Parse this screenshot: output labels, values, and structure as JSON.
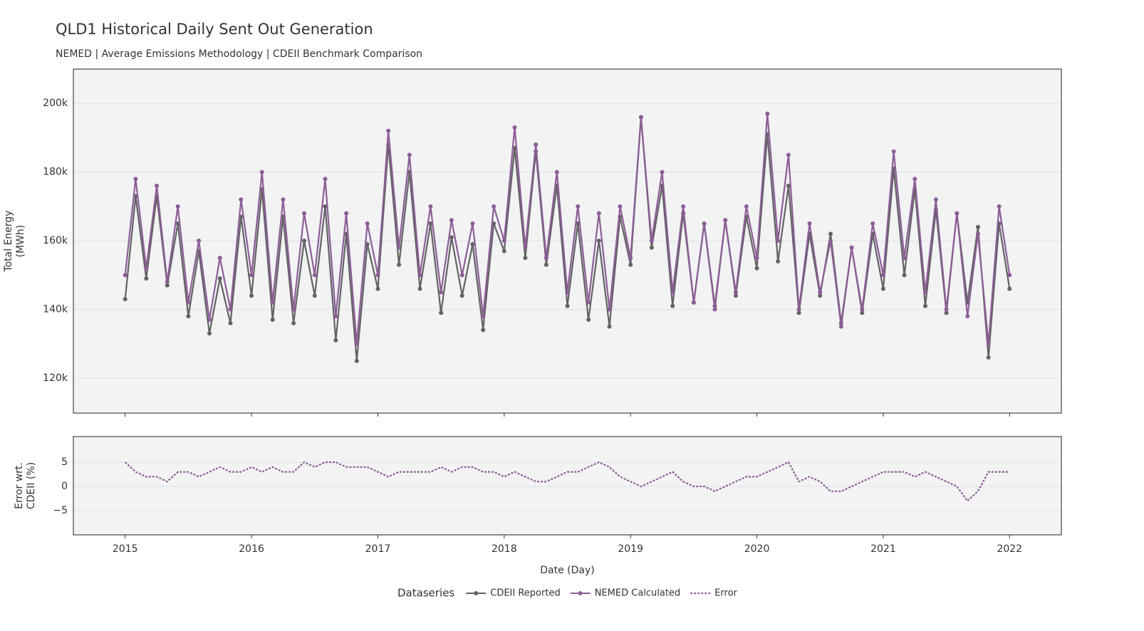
{
  "chart_data": [
    {
      "type": "line",
      "title": "QLD1 Historical Daily Sent Out Generation",
      "subtitle": "NEMED | Average Emissions Methodology | CDEII Benchmark Comparison",
      "ylabel": [
        "Total Energy",
        "(MWh)"
      ],
      "legend_title": "Dataseries",
      "legend": "bottom",
      "grid": true,
      "x": [
        2015,
        2015.083,
        2015.167,
        2015.25,
        2015.333,
        2015.417,
        2015.5,
        2015.583,
        2015.667,
        2015.75,
        2015.833,
        2015.917,
        2016,
        2016.083,
        2016.167,
        2016.25,
        2016.333,
        2016.417,
        2016.5,
        2016.583,
        2016.667,
        2016.75,
        2016.833,
        2016.917,
        2017,
        2017.083,
        2017.167,
        2017.25,
        2017.333,
        2017.417,
        2017.5,
        2017.583,
        2017.667,
        2017.75,
        2017.833,
        2017.917,
        2018,
        2018.083,
        2018.167,
        2018.25,
        2018.333,
        2018.417,
        2018.5,
        2018.583,
        2018.667,
        2018.75,
        2018.833,
        2018.917,
        2019,
        2019.083,
        2019.167,
        2019.25,
        2019.333,
        2019.417,
        2019.5,
        2019.583,
        2019.667,
        2019.75,
        2019.833,
        2019.917,
        2020,
        2020.083,
        2020.167,
        2020.25,
        2020.333,
        2020.417,
        2020.5,
        2020.583,
        2020.667,
        2020.75,
        2020.833,
        2020.917,
        2021,
        2021.083,
        2021.167,
        2021.25,
        2021.333,
        2021.417,
        2021.5,
        2021.583,
        2021.667,
        2021.75,
        2021.833,
        2021.917,
        2022
      ],
      "xlim": [
        2014.59,
        2022.41
      ],
      "ylim": [
        109800,
        210000
      ],
      "yticks": [
        {
          "value": 120000,
          "label": "120k"
        },
        {
          "value": 140000,
          "label": "140k"
        },
        {
          "value": 160000,
          "label": "160k"
        },
        {
          "value": 180000,
          "label": "180k"
        },
        {
          "value": 200000,
          "label": "200k"
        }
      ],
      "series": [
        {
          "name": "CDEII Reported",
          "color": "#636363",
          "markers": true,
          "values": [
            143000,
            173000,
            149000,
            173000,
            147000,
            165000,
            138000,
            157000,
            133000,
            149000,
            136000,
            167000,
            144000,
            175000,
            137000,
            167000,
            136000,
            160000,
            144000,
            170000,
            131000,
            162000,
            125000,
            159000,
            146000,
            188000,
            153000,
            180000,
            146000,
            165000,
            139000,
            161000,
            144000,
            159000,
            134000,
            165000,
            157000,
            187000,
            155000,
            186000,
            153000,
            176000,
            141000,
            165000,
            137000,
            160000,
            135000,
            167000,
            153000,
            196000,
            158000,
            176000,
            141000,
            168000,
            142000,
            165000,
            141000,
            166000,
            144000,
            167000,
            152000,
            191000,
            154000,
            176000,
            139000,
            162000,
            144000,
            162000,
            136000,
            158000,
            139000,
            162000,
            146000,
            181000,
            150000,
            175000,
            141000,
            169000,
            139000,
            168000,
            142000,
            164000,
            126000,
            165000,
            146000
          ]
        },
        {
          "name": "NEMED Calculated",
          "color": "#8c5e96",
          "markers": true,
          "values": [
            150000,
            178000,
            152000,
            176000,
            148000,
            170000,
            142000,
            160000,
            137000,
            155000,
            140000,
            172000,
            150000,
            180000,
            142000,
            172000,
            140000,
            168000,
            150000,
            178000,
            138000,
            168000,
            130000,
            165000,
            150000,
            192000,
            158000,
            185000,
            150000,
            170000,
            145000,
            166000,
            150000,
            165000,
            138000,
            170000,
            160000,
            193000,
            158000,
            188000,
            155000,
            180000,
            145000,
            170000,
            142000,
            168000,
            140000,
            170000,
            155000,
            196000,
            160000,
            180000,
            145000,
            170000,
            142000,
            165000,
            140000,
            166000,
            145000,
            170000,
            155000,
            197000,
            160000,
            185000,
            140000,
            165000,
            145000,
            160000,
            135000,
            158000,
            140000,
            165000,
            150000,
            186000,
            155000,
            178000,
            145000,
            172000,
            140000,
            168000,
            138000,
            162000,
            130000,
            170000,
            150000
          ]
        }
      ]
    },
    {
      "type": "line",
      "ylabel": [
        "Error wrt.",
        "CDEII (%)"
      ],
      "xlabel": "Date (Day)",
      "grid": true,
      "x": [
        2015,
        2015.083,
        2015.167,
        2015.25,
        2015.333,
        2015.417,
        2015.5,
        2015.583,
        2015.667,
        2015.75,
        2015.833,
        2015.917,
        2016,
        2016.083,
        2016.167,
        2016.25,
        2016.333,
        2016.417,
        2016.5,
        2016.583,
        2016.667,
        2016.75,
        2016.833,
        2016.917,
        2017,
        2017.083,
        2017.167,
        2017.25,
        2017.333,
        2017.417,
        2017.5,
        2017.583,
        2017.667,
        2017.75,
        2017.833,
        2017.917,
        2018,
        2018.083,
        2018.167,
        2018.25,
        2018.333,
        2018.417,
        2018.5,
        2018.583,
        2018.667,
        2018.75,
        2018.833,
        2018.917,
        2019,
        2019.083,
        2019.167,
        2019.25,
        2019.333,
        2019.417,
        2019.5,
        2019.583,
        2019.667,
        2019.75,
        2019.833,
        2019.917,
        2020,
        2020.083,
        2020.167,
        2020.25,
        2020.333,
        2020.417,
        2020.5,
        2020.583,
        2020.667,
        2020.75,
        2020.833,
        2020.917,
        2021,
        2021.083,
        2021.167,
        2021.25,
        2021.333,
        2021.417,
        2021.5,
        2021.583,
        2021.667,
        2021.75,
        2021.833,
        2021.917,
        2022
      ],
      "xlim": [
        2014.59,
        2022.41
      ],
      "xticks": [
        2015,
        2016,
        2017,
        2018,
        2019,
        2020,
        2021,
        2022
      ],
      "ylim": [
        -10,
        10.3
      ],
      "yticks": [
        {
          "value": -5,
          "label": "−5"
        },
        0,
        5
      ],
      "series": [
        {
          "name": "Error",
          "color": "#8c5e96",
          "dash": true,
          "values": [
            5,
            3,
            2,
            2,
            1,
            3,
            3,
            2,
            3,
            4,
            3,
            3,
            4,
            3,
            4,
            3,
            3,
            5,
            4,
            5,
            5,
            4,
            4,
            4,
            3,
            2,
            3,
            3,
            3,
            3,
            4,
            3,
            4,
            4,
            3,
            3,
            2,
            3,
            2,
            1,
            1,
            2,
            3,
            3,
            4,
            5,
            4,
            2,
            1,
            0,
            1,
            2,
            3,
            1,
            0,
            0,
            -1,
            0,
            1,
            2,
            2,
            3,
            4,
            5,
            1,
            2,
            1,
            -1,
            -1,
            0,
            1,
            2,
            3,
            3,
            3,
            2,
            3,
            2,
            1,
            0,
            -3,
            -1,
            3,
            3,
            3
          ]
        }
      ]
    }
  ]
}
